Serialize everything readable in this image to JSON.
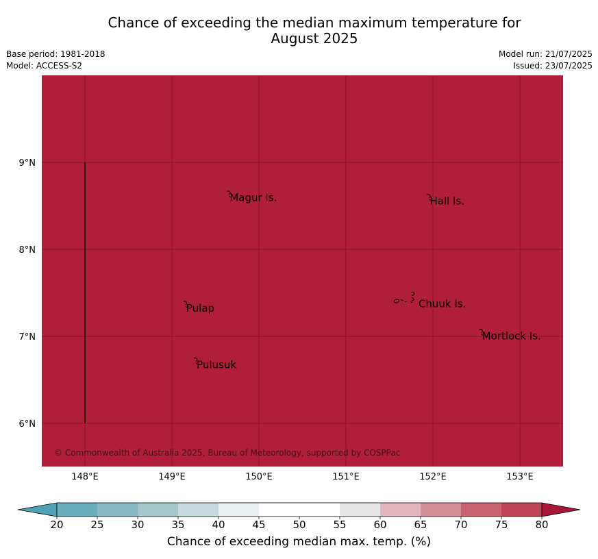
{
  "title": "Chance of exceeding the median maximum temperature for August 2025",
  "title_line1": "Chance of exceeding the median maximum temperature for",
  "title_line2": "August 2025",
  "meta": {
    "base_period": "Base period: 1981-2018",
    "model": "Model: ACCESS-S2",
    "model_run": "Model run: 21/07/2025",
    "issued": "Issued: 23/07/2025"
  },
  "map": {
    "fill_color": "#b01e37",
    "grid_color": "#7d1526",
    "lon_ticks": [
      "148°E",
      "149°E",
      "150°E",
      "151°E",
      "152°E",
      "153°E"
    ],
    "lon_values": [
      148,
      149,
      150,
      151,
      152,
      153
    ],
    "lat_ticks": [
      "9°N",
      "8°N",
      "7°N",
      "6°N"
    ],
    "lat_values": [
      9,
      8,
      7,
      6
    ],
    "lon_range": [
      147.5,
      153.5
    ],
    "lat_range": [
      5.5,
      10
    ],
    "boundary_line": {
      "lon": 148,
      "lat_from": 6,
      "lat_to": 9
    },
    "places": [
      {
        "name": "Magur Is.",
        "lon": 149.68,
        "lat": 8.57
      },
      {
        "name": "Hall Is.",
        "lon": 151.98,
        "lat": 8.53
      },
      {
        "name": "Pulap",
        "lon": 149.18,
        "lat": 7.3
      },
      {
        "name": "Chuuk Is.",
        "lon": 151.85,
        "lat": 7.35
      },
      {
        "name": "Mortlock Is.",
        "lon": 152.58,
        "lat": 6.98
      },
      {
        "name": "Pulusuk",
        "lon": 149.3,
        "lat": 6.65
      }
    ],
    "copyright": "© Commonwealth of Australia 2025, Bureau of Meteorology, supported by COSPPac"
  },
  "colorbar": {
    "label": "Chance of exceeding median max. temp. (%)",
    "ticks": [
      "20",
      "25",
      "30",
      "35",
      "40",
      "45",
      "50",
      "55",
      "60",
      "65",
      "70",
      "75",
      "80"
    ],
    "colors": [
      "#6aaebd",
      "#87b8c3",
      "#a5c7cb",
      "#c7dadd",
      "#eaeff1",
      "#ffffff",
      "#ffffff",
      "#e8e8e8",
      "#e1b6bf",
      "#d38f98",
      "#c96571",
      "#be4556"
    ],
    "under_color": "#4fa2b3",
    "over_color": "#a71837"
  }
}
